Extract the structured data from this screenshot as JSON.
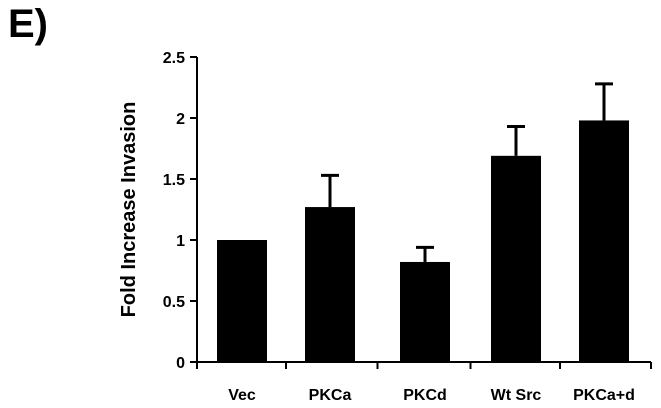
{
  "panel_label": "E)",
  "chart_data": {
    "type": "bar",
    "categories": [
      "Vec",
      "PKCa",
      "PKCd",
      "Wt Src",
      "PKCa+d"
    ],
    "values": [
      1.0,
      1.27,
      0.82,
      1.69,
      1.98
    ],
    "error_upper": [
      0.0,
      0.26,
      0.12,
      0.24,
      0.3
    ],
    "title": "",
    "xlabel": "",
    "ylabel": "Fold Increase Invasion",
    "ylim": [
      0,
      2.5
    ],
    "yticks": [
      "0",
      "0.5",
      "1",
      "1.5",
      "2",
      "2.5"
    ],
    "grid": false,
    "legend": "none",
    "bar_color": "#000000"
  }
}
